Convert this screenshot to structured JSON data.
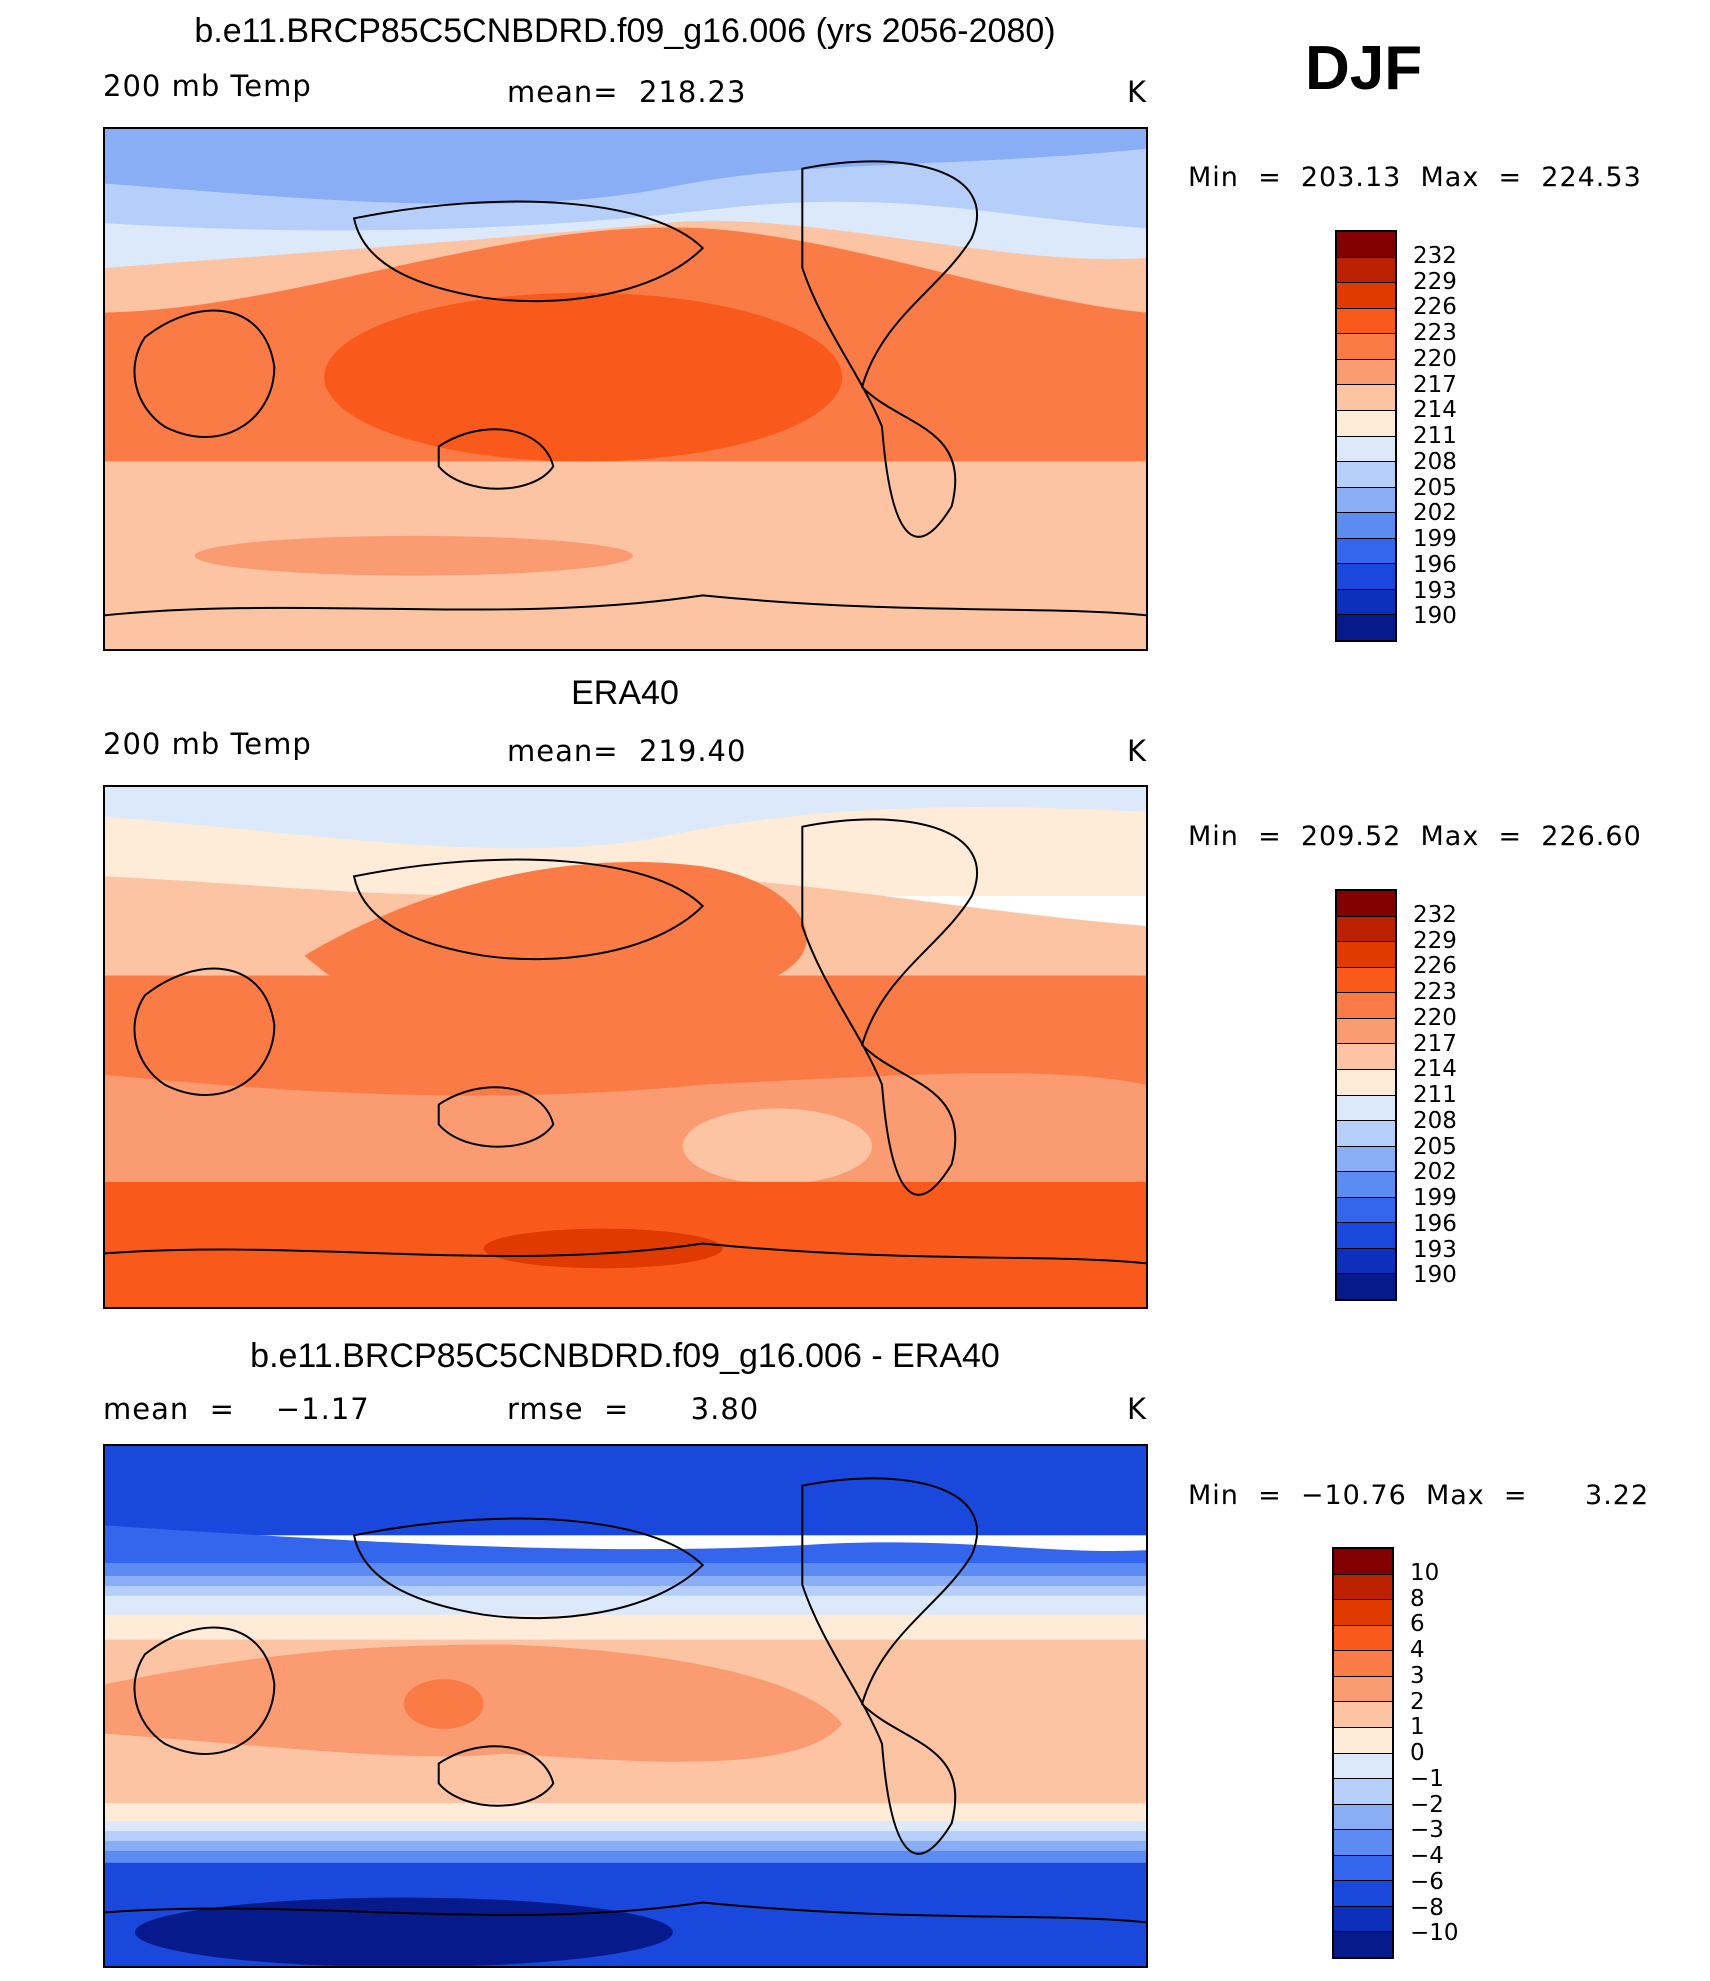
{
  "season": "DJF",
  "panels": [
    {
      "title": "b.e11.BRCP85C5CNBDRD.f09_g16.006 (yrs 2056-2080)",
      "left_label": "200 mb Temp",
      "center_label": "mean=  218.23",
      "units": "K",
      "stats": "Min  =  203.13  Max  =  224.53",
      "colorbar_labels": [
        "232",
        "229",
        "226",
        "223",
        "220",
        "217",
        "214",
        "211",
        "208",
        "205",
        "202",
        "199",
        "196",
        "193",
        "190"
      ]
    },
    {
      "title": "ERA40",
      "left_label": "200 mb Temp",
      "center_label": "mean=  219.40",
      "units": "K",
      "stats": "Min  =  209.52  Max  =  226.60",
      "colorbar_labels": [
        "232",
        "229",
        "226",
        "223",
        "220",
        "217",
        "214",
        "211",
        "208",
        "205",
        "202",
        "199",
        "196",
        "193",
        "190"
      ]
    },
    {
      "title": "b.e11.BRCP85C5CNBDRD.f09_g16.006 - ERA40",
      "left_label": "mean  =    −1.17",
      "center_label": "rmse  =      3.80",
      "units": "K",
      "stats": "Min  =  −10.76  Max  =      3.22",
      "colorbar_labels": [
        "10",
        "8",
        "6",
        "4",
        "3",
        "2",
        "1",
        "0",
        "−1",
        "−2",
        "−3",
        "−4",
        "−6",
        "−8",
        "−10"
      ]
    }
  ],
  "colors": {
    "scale": [
      "#830000",
      "#bb2000",
      "#e03a00",
      "#f95a1c",
      "#fa7b45",
      "#fb9b72",
      "#fcc4a2",
      "#feecd9",
      "#dbe9fb",
      "#b6cffa",
      "#8aaef6",
      "#5c8bf1",
      "#3366ec",
      "#1a48dd",
      "#0c2fbc",
      "#061a8c"
    ]
  }
}
